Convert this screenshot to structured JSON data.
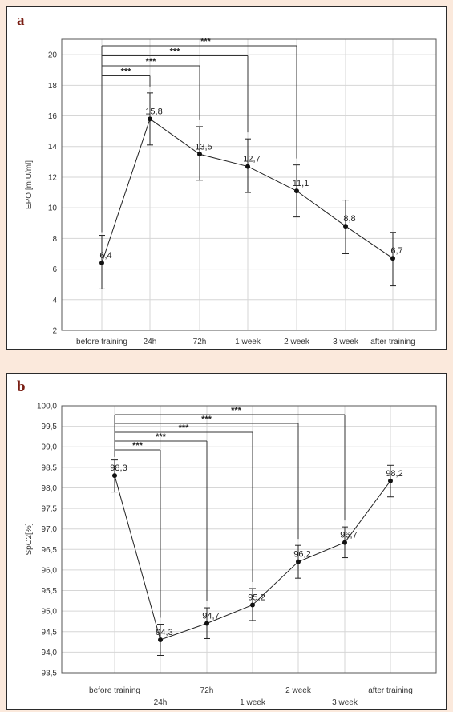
{
  "chart_data": [
    {
      "panel": "a",
      "type": "line",
      "ylabel": "EPO [mIU/ml]",
      "ylim": [
        2,
        21
      ],
      "yticks": [
        "2",
        "4",
        "6",
        "8",
        "10",
        "12",
        "14",
        "16",
        "18",
        "20"
      ],
      "categories": [
        "before training",
        "24h",
        "72h",
        "1 week",
        "2 week",
        "3 week",
        "after training"
      ],
      "values": [
        6.4,
        15.8,
        13.5,
        12.7,
        11.1,
        8.8,
        6.7
      ],
      "value_labels": [
        "6,4",
        "15,8",
        "13,5",
        "12,7",
        "11,1",
        "8,8",
        "6,7"
      ],
      "err_low": [
        4.7,
        14.1,
        11.8,
        11.0,
        9.4,
        7.0,
        4.9
      ],
      "err_high": [
        8.2,
        17.5,
        15.3,
        14.5,
        12.8,
        10.5,
        8.4
      ],
      "significance": [
        {
          "to": 1,
          "label": "***"
        },
        {
          "to": 2,
          "label": "***"
        },
        {
          "to": 3,
          "label": "***"
        },
        {
          "to": 4,
          "label": "***"
        }
      ],
      "grid": true
    },
    {
      "panel": "b",
      "type": "line",
      "ylabel": "SpO2[%]",
      "ylim": [
        93.5,
        100.0
      ],
      "yticks": [
        "93,5",
        "94,0",
        "94,5",
        "95,0",
        "95,5",
        "96,0",
        "96,5",
        "97,0",
        "97,5",
        "98,0",
        "98,5",
        "99,0",
        "99,5",
        "100,0"
      ],
      "categories": [
        "before training",
        "24h",
        "72h",
        "1 week",
        "2 week",
        "3 week",
        "after training"
      ],
      "values": [
        98.3,
        94.3,
        94.7,
        95.15,
        96.2,
        96.67,
        98.17
      ],
      "value_labels": [
        "98,3",
        "94,3",
        "94,7",
        "95,2",
        "96,2",
        "96,7",
        "98,2"
      ],
      "err_low": [
        97.9,
        93.92,
        94.33,
        94.77,
        95.8,
        96.3,
        97.78
      ],
      "err_high": [
        98.68,
        94.68,
        95.08,
        95.55,
        96.6,
        97.05,
        98.55
      ],
      "significance": [
        {
          "to": 1,
          "label": "***"
        },
        {
          "to": 2,
          "label": "***"
        },
        {
          "to": 3,
          "label": "***"
        },
        {
          "to": 4,
          "label": "***"
        },
        {
          "to": 5,
          "label": "***"
        }
      ],
      "grid": true
    }
  ],
  "panels": {
    "a": {
      "letter": "a"
    },
    "b": {
      "letter": "b"
    }
  }
}
